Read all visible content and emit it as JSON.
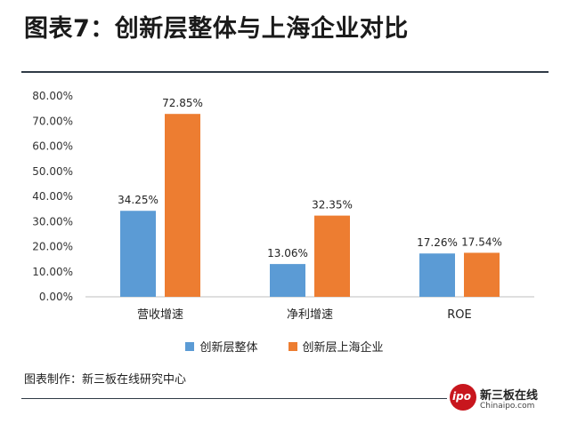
{
  "header": {
    "title": "图表7：创新层整体与上海企业对比"
  },
  "chart_data": {
    "type": "bar",
    "categories": [
      "营收增速",
      "净利增速",
      "ROE"
    ],
    "series": [
      {
        "name": "创新层整体",
        "values": [
          34.25,
          13.06,
          17.26
        ],
        "labels": [
          "34.25%",
          "13.06%",
          "17.26%"
        ],
        "color": "#5b9bd5"
      },
      {
        "name": "创新层上海企业",
        "values": [
          72.85,
          32.35,
          17.54
        ],
        "labels": [
          "72.85%",
          "32.35%",
          "17.54%"
        ],
        "color": "#ed7d31"
      }
    ],
    "yticks": [
      "0.00%",
      "10.00%",
      "20.00%",
      "30.00%",
      "40.00%",
      "50.00%",
      "60.00%",
      "70.00%",
      "80.00%"
    ],
    "ylim": [
      0,
      80
    ],
    "grid": false,
    "legend_position": "bottom"
  },
  "footer": {
    "source": "图表制作：新三板在线研究中心",
    "logo": {
      "text_ipo": "ipo",
      "text_cn": "新三板在线",
      "url": "Chinaipo.com"
    }
  }
}
